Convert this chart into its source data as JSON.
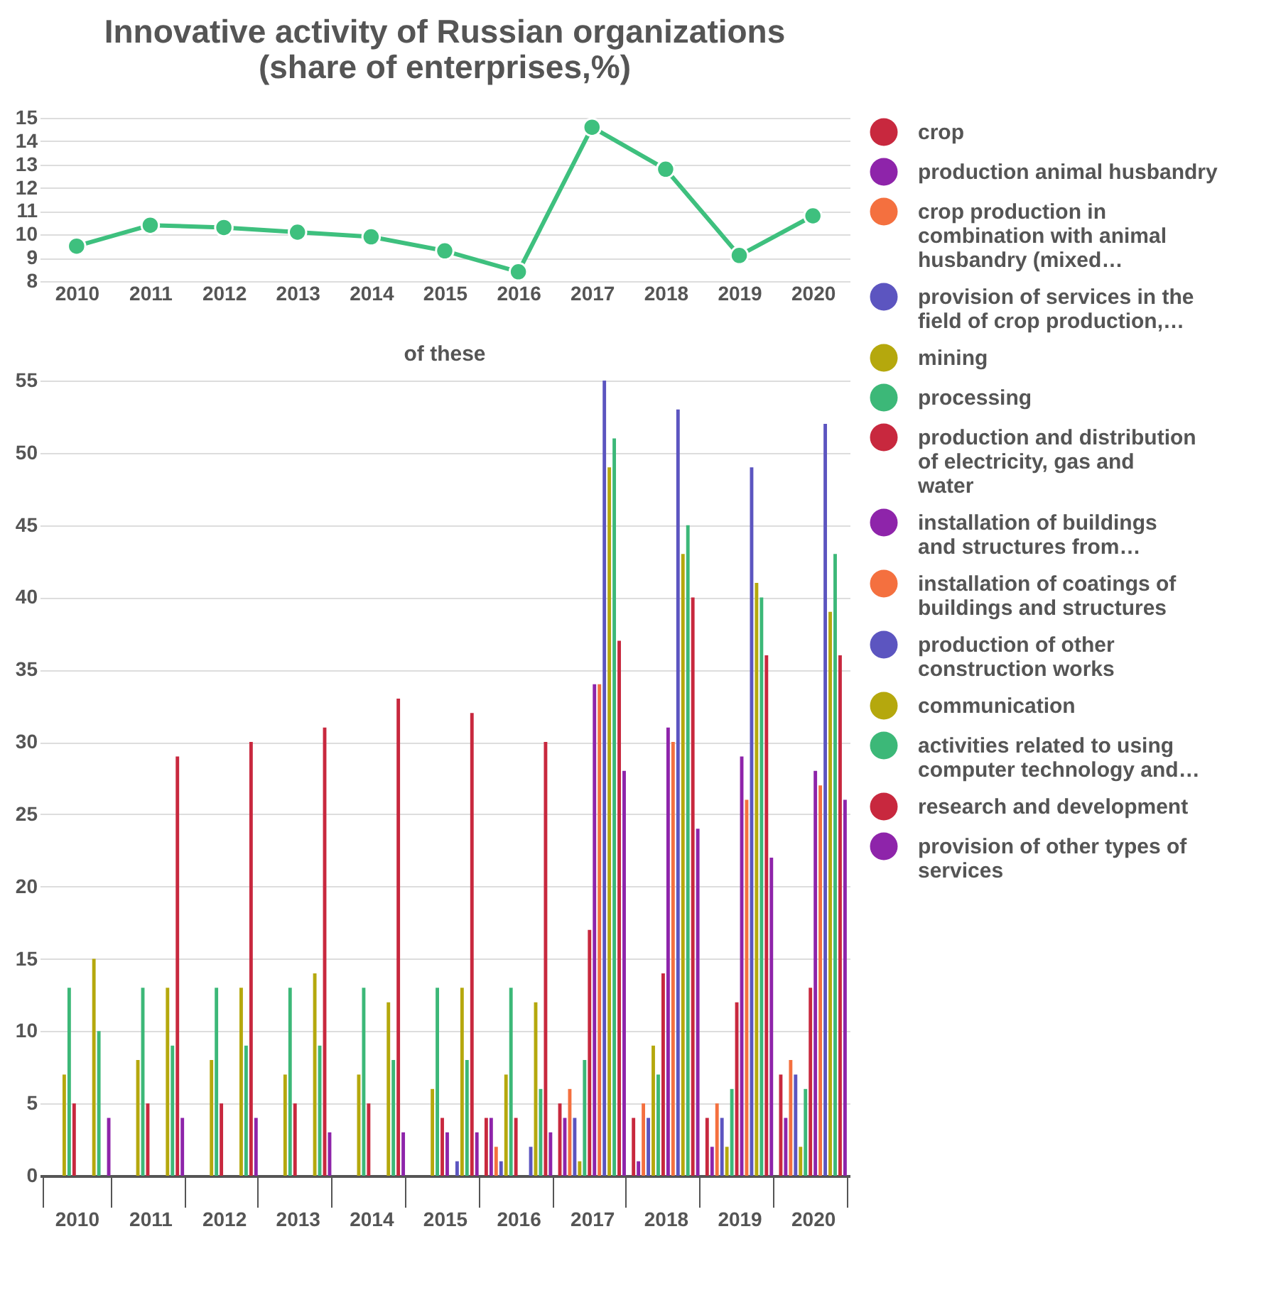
{
  "chart_data": [
    {
      "type": "line",
      "title": "Innovative activity of Russian organizations (share of enterprises,%)",
      "categories": [
        "2010",
        "2011",
        "2012",
        "2013",
        "2014",
        "2015",
        "2016",
        "2017",
        "2018",
        "2019",
        "2020"
      ],
      "values": [
        9.5,
        10.4,
        10.3,
        10.1,
        9.9,
        9.3,
        8.4,
        14.6,
        12.8,
        9.1,
        10.8
      ],
      "color": "#3ec07e",
      "ylim": [
        8,
        15
      ],
      "yticks": [
        8,
        9,
        10,
        11,
        12,
        13,
        14,
        15
      ],
      "grid": "y",
      "marker": "circle"
    },
    {
      "type": "bar",
      "title": "of these",
      "categories": [
        "2010",
        "2011",
        "2012",
        "2013",
        "2014",
        "2015",
        "2016",
        "2017",
        "2018",
        "2019",
        "2020"
      ],
      "ylim": [
        0,
        55
      ],
      "yticks": [
        0,
        5,
        10,
        15,
        20,
        25,
        30,
        35,
        40,
        45,
        50,
        55
      ],
      "grid": "y",
      "legend": "right",
      "series": [
        {
          "name": "crop",
          "color": "#c8283e",
          "values": [
            null,
            null,
            null,
            null,
            null,
            null,
            4,
            5,
            4,
            4,
            7
          ]
        },
        {
          "name": "production animal husbandry",
          "color": "#8e24aa",
          "values": [
            null,
            null,
            null,
            null,
            null,
            null,
            4,
            4,
            1,
            2,
            4
          ]
        },
        {
          "name": "crop production in combination with animal husbandry (mixed…",
          "color": "#f4703f",
          "values": [
            null,
            null,
            null,
            null,
            null,
            null,
            2,
            6,
            5,
            5,
            8
          ]
        },
        {
          "name": "provision of services in the field of crop production,…",
          "color": "#5c55c0",
          "values": [
            null,
            null,
            null,
            null,
            null,
            null,
            1,
            4,
            4,
            4,
            7
          ]
        },
        {
          "name": "mining",
          "color": "#b5a80d",
          "values": [
            7,
            8,
            8,
            7,
            7,
            6,
            7,
            1,
            9,
            2,
            2
          ]
        },
        {
          "name": "processing",
          "color": "#3cb878",
          "values": [
            13,
            13,
            13,
            13,
            13,
            13,
            13,
            8,
            7,
            6,
            6
          ]
        },
        {
          "name": "production and distribution of electricity, gas and water",
          "color": "#c8283e",
          "values": [
            5,
            5,
            5,
            5,
            5,
            4,
            4,
            17,
            14,
            12,
            13
          ]
        },
        {
          "name": "installation of buildings and structures from…",
          "color": "#8e24aa",
          "values": [
            null,
            null,
            null,
            null,
            null,
            3,
            null,
            34,
            31,
            29,
            28
          ]
        },
        {
          "name": "installation of coatings of buildings and structures",
          "color": "#f4703f",
          "values": [
            null,
            null,
            null,
            null,
            null,
            null,
            null,
            34,
            30,
            26,
            27
          ]
        },
        {
          "name": "production of other construction works",
          "color": "#5c55c0",
          "values": [
            null,
            null,
            null,
            null,
            null,
            1,
            2,
            55,
            53,
            49,
            52
          ]
        },
        {
          "name": "communication",
          "color": "#b5a80d",
          "values": [
            15,
            13,
            13,
            14,
            12,
            13,
            12,
            49,
            43,
            41,
            39
          ]
        },
        {
          "name": "activities related to using computer technology and…",
          "color": "#3cb878",
          "values": [
            10,
            9,
            9,
            9,
            8,
            8,
            6,
            51,
            45,
            40,
            43
          ]
        },
        {
          "name": "research and development",
          "color": "#c8283e",
          "values": [
            null,
            29,
            30,
            31,
            33,
            32,
            30,
            37,
            40,
            36,
            36
          ]
        },
        {
          "name": "provision of other types of services",
          "color": "#8e24aa",
          "values": [
            4,
            4,
            4,
            3,
            3,
            3,
            3,
            28,
            24,
            22,
            26
          ]
        }
      ]
    }
  ]
}
